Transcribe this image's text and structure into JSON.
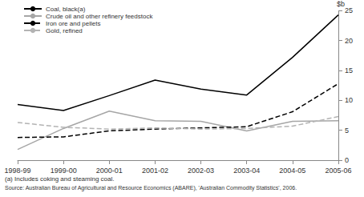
{
  "chart_data": {
    "type": "line",
    "y_label": "$b",
    "categories": [
      "1998-99",
      "1999-00",
      "2000-01",
      "2001-02",
      "2002-03",
      "2003-04",
      "2004-05",
      "2005-06"
    ],
    "series": [
      {
        "name": "Coal, black(a)",
        "color": "#000000",
        "line_style": "solid",
        "values": [
          9.3,
          8.3,
          10.8,
          13.4,
          11.9,
          10.9,
          17.2,
          24.3
        ]
      },
      {
        "name": "Crude oil and other refinery feedstock",
        "color": "#a6a6a6",
        "line_style": "solid",
        "values": [
          1.8,
          5.3,
          8.2,
          6.6,
          6.5,
          4.9,
          6.5,
          6.6
        ]
      },
      {
        "name": "Iron ore and pellets",
        "color": "#000000",
        "line_style": "dashed",
        "values": [
          3.8,
          3.9,
          4.9,
          5.2,
          5.4,
          5.6,
          8.1,
          12.8
        ]
      },
      {
        "name": "Gold, refined",
        "color": "#b3b3b3",
        "line_style": "dashed",
        "values": [
          6.3,
          5.5,
          5.2,
          5.4,
          5.2,
          5.3,
          5.7,
          7.3
        ]
      }
    ],
    "ylim": [
      0,
      25
    ],
    "yticks": [
      0,
      5,
      10,
      15,
      20,
      25
    ],
    "grid": false,
    "legend": "top-left",
    "annotations": [
      "(a) Includes coking and steaming coal.",
      "Source: Australian Bureau of Agricultural and Resource Economics (ABARE), 'Australian Commodity Statistics', 2006."
    ]
  }
}
